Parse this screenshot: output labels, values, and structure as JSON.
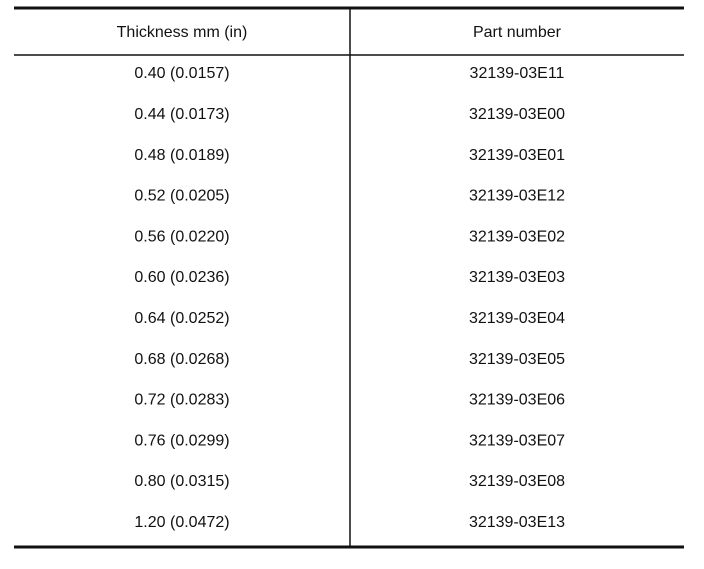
{
  "table": {
    "header": [
      "Thickness mm (in)",
      "Part number"
    ],
    "rows": [
      [
        "0.40 (0.0157)",
        "32139-03E11"
      ],
      [
        "0.44 (0.0173)",
        "32139-03E00"
      ],
      [
        "0.48 (0.0189)",
        "32139-03E01"
      ],
      [
        "0.52 (0.0205)",
        "32139-03E12"
      ],
      [
        "0.56 (0.0220)",
        "32139-03E02"
      ],
      [
        "0.60 (0.0236)",
        "32139-03E03"
      ],
      [
        "0.64 (0.0252)",
        "32139-03E04"
      ],
      [
        "0.68 (0.0268)",
        "32139-03E05"
      ],
      [
        "0.72 (0.0283)",
        "32139-03E06"
      ],
      [
        "0.76 (0.0299)",
        "32139-03E07"
      ],
      [
        "0.80 (0.0315)",
        "32139-03E08"
      ],
      [
        "1.20 (0.0472)",
        "32139-03E13"
      ]
    ]
  }
}
